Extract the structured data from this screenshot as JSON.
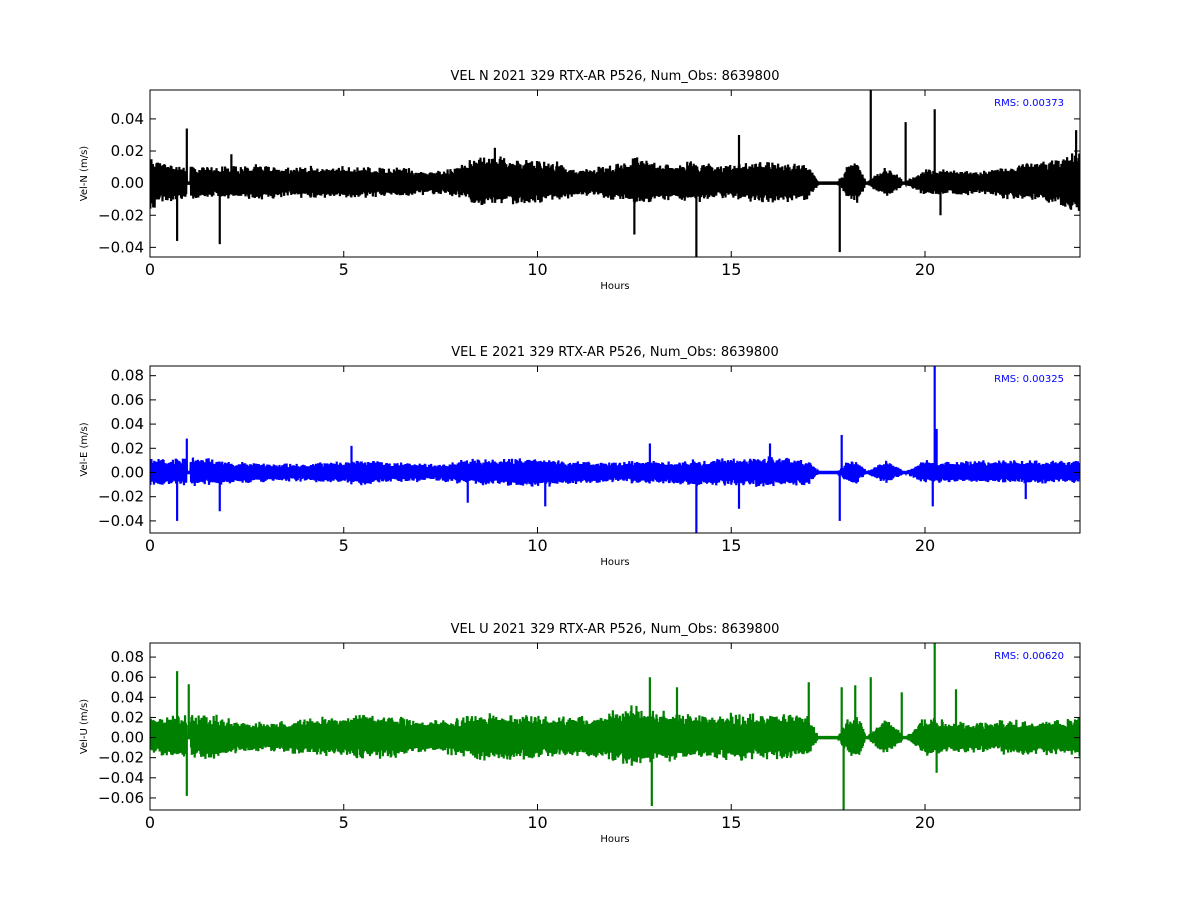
{
  "chart_data": [
    {
      "type": "line",
      "title": "VEL N 2021 329 RTX-AR  P526, Num_Obs: 8639800",
      "xlabel": "Hours",
      "ylabel": "Vel-N (m/s)",
      "xlim": [
        0,
        24
      ],
      "ylim": [
        -0.046,
        0.058
      ],
      "xticks": [
        0,
        5,
        10,
        15,
        20
      ],
      "yticks": [
        -0.04,
        -0.02,
        0.0,
        0.02,
        0.04
      ],
      "xtick_labels": [
        "0",
        "5",
        "10",
        "15",
        "20"
      ],
      "ytick_labels": [
        "−0.04",
        "−0.02",
        "0.00",
        "0.02",
        "0.04"
      ],
      "color": "#000000",
      "annotation": "RMS:  0.00373",
      "grid": false,
      "series": [
        {
          "x": [
            0.0,
            0.5,
            1.0,
            1.5,
            2.0,
            2.5,
            3.0,
            3.5,
            4.0,
            4.5,
            5.0,
            5.5,
            6.0,
            6.5,
            7.0,
            7.5,
            8.0,
            8.5,
            9.0,
            9.5,
            10.0,
            10.5,
            11.0,
            11.5,
            12.0,
            12.5,
            13.0,
            13.5,
            14.0,
            14.5,
            15.0,
            15.5,
            16.0,
            16.5,
            17.0,
            17.25,
            17.75,
            18.0,
            18.25,
            18.5,
            19.0,
            19.5,
            20.0,
            20.5,
            21.0,
            21.5,
            22.0,
            22.5,
            23.0,
            23.5,
            24.0
          ],
          "y_low": [
            -0.018,
            -0.012,
            -0.011,
            -0.01,
            -0.01,
            -0.01,
            -0.011,
            -0.01,
            -0.01,
            -0.01,
            -0.01,
            -0.01,
            -0.009,
            -0.009,
            -0.008,
            -0.007,
            -0.01,
            -0.015,
            -0.015,
            -0.014,
            -0.013,
            -0.012,
            -0.008,
            -0.009,
            -0.011,
            -0.014,
            -0.013,
            -0.011,
            -0.013,
            -0.011,
            -0.01,
            -0.012,
            -0.013,
            -0.012,
            -0.011,
            -0.001,
            -0.001,
            -0.01,
            -0.013,
            -0.001,
            -0.01,
            -0.001,
            -0.009,
            -0.008,
            -0.008,
            -0.007,
            -0.01,
            -0.011,
            -0.013,
            -0.016,
            -0.02
          ],
          "y_high": [
            0.018,
            0.013,
            0.012,
            0.011,
            0.012,
            0.012,
            0.012,
            0.011,
            0.011,
            0.011,
            0.011,
            0.011,
            0.01,
            0.011,
            0.009,
            0.008,
            0.012,
            0.018,
            0.018,
            0.016,
            0.015,
            0.014,
            0.009,
            0.011,
            0.012,
            0.017,
            0.015,
            0.012,
            0.015,
            0.013,
            0.012,
            0.014,
            0.015,
            0.014,
            0.013,
            0.001,
            0.001,
            0.012,
            0.014,
            0.001,
            0.011,
            0.001,
            0.01,
            0.009,
            0.009,
            0.008,
            0.011,
            0.013,
            0.015,
            0.018,
            0.022
          ],
          "gaps": [
            [
              0.95,
              1.05
            ],
            [
              17.25,
              17.75
            ],
            [
              18.45,
              18.55
            ],
            [
              19.4,
              19.5
            ]
          ],
          "spikes": [
            [
              0.7,
              -0.036
            ],
            [
              0.95,
              0.034
            ],
            [
              1.8,
              -0.038
            ],
            [
              2.1,
              0.018
            ],
            [
              8.9,
              0.022
            ],
            [
              12.5,
              -0.032
            ],
            [
              14.1,
              -0.046
            ],
            [
              15.2,
              0.03
            ],
            [
              17.8,
              -0.043
            ],
            [
              18.6,
              0.058
            ],
            [
              19.5,
              0.038
            ],
            [
              20.25,
              0.046
            ],
            [
              20.4,
              -0.02
            ],
            [
              23.9,
              0.033
            ]
          ]
        }
      ]
    },
    {
      "type": "line",
      "title": "VEL E 2021 329 RTX-AR  P526, Num_Obs: 8639800",
      "xlabel": "Hours",
      "ylabel": "Vel-E (m/s)",
      "xlim": [
        0,
        24
      ],
      "ylim": [
        -0.05,
        0.088
      ],
      "xticks": [
        0,
        5,
        10,
        15,
        20
      ],
      "yticks": [
        -0.04,
        -0.02,
        0.0,
        0.02,
        0.04,
        0.06,
        0.08
      ],
      "xtick_labels": [
        "0",
        "5",
        "10",
        "15",
        "20"
      ],
      "ytick_labels": [
        "−0.04",
        "−0.02",
        "0.00",
        "0.02",
        "0.04",
        "0.06",
        "0.08"
      ],
      "color": "#0000ff",
      "annotation": "RMS:  0.00325",
      "grid": false,
      "series": [
        {
          "x": [
            0.0,
            0.5,
            1.0,
            1.5,
            2.0,
            2.5,
            3.0,
            3.5,
            4.0,
            4.5,
            5.0,
            5.5,
            6.0,
            6.5,
            7.0,
            7.5,
            8.0,
            8.5,
            9.0,
            9.5,
            10.0,
            10.5,
            11.0,
            11.5,
            12.0,
            12.5,
            13.0,
            13.5,
            14.0,
            14.5,
            15.0,
            15.5,
            16.0,
            16.5,
            17.0,
            17.25,
            17.75,
            18.0,
            18.25,
            18.5,
            19.0,
            19.5,
            20.0,
            20.5,
            21.0,
            21.5,
            22.0,
            22.5,
            23.0,
            23.5,
            24.0
          ],
          "y_low": [
            -0.012,
            -0.011,
            -0.012,
            -0.012,
            -0.01,
            -0.009,
            -0.008,
            -0.008,
            -0.008,
            -0.009,
            -0.01,
            -0.011,
            -0.01,
            -0.009,
            -0.008,
            -0.008,
            -0.01,
            -0.011,
            -0.012,
            -0.013,
            -0.013,
            -0.011,
            -0.01,
            -0.009,
            -0.009,
            -0.01,
            -0.01,
            -0.01,
            -0.011,
            -0.012,
            -0.012,
            -0.012,
            -0.013,
            -0.012,
            -0.011,
            -0.001,
            -0.001,
            -0.009,
            -0.01,
            -0.001,
            -0.01,
            -0.001,
            -0.01,
            -0.009,
            -0.009,
            -0.009,
            -0.01,
            -0.01,
            -0.01,
            -0.009,
            -0.009
          ],
          "y_high": [
            0.012,
            0.012,
            0.014,
            0.013,
            0.01,
            0.009,
            0.008,
            0.008,
            0.008,
            0.009,
            0.011,
            0.012,
            0.01,
            0.009,
            0.008,
            0.008,
            0.011,
            0.012,
            0.012,
            0.013,
            0.013,
            0.011,
            0.01,
            0.009,
            0.009,
            0.01,
            0.01,
            0.01,
            0.011,
            0.012,
            0.013,
            0.013,
            0.014,
            0.012,
            0.011,
            0.001,
            0.001,
            0.01,
            0.011,
            0.001,
            0.011,
            0.001,
            0.011,
            0.01,
            0.01,
            0.011,
            0.012,
            0.011,
            0.011,
            0.01,
            0.01
          ],
          "gaps": [
            [
              0.95,
              1.05
            ],
            [
              17.25,
              17.75
            ],
            [
              18.45,
              18.55
            ],
            [
              19.4,
              19.5
            ]
          ],
          "spikes": [
            [
              0.7,
              -0.04
            ],
            [
              0.95,
              0.028
            ],
            [
              1.8,
              -0.032
            ],
            [
              5.2,
              0.022
            ],
            [
              8.2,
              -0.025
            ],
            [
              10.2,
              -0.028
            ],
            [
              12.9,
              0.024
            ],
            [
              14.1,
              -0.05
            ],
            [
              15.2,
              -0.03
            ],
            [
              16.0,
              0.024
            ],
            [
              17.8,
              -0.04
            ],
            [
              17.85,
              0.031
            ],
            [
              20.25,
              0.088
            ],
            [
              20.3,
              0.036
            ],
            [
              20.2,
              -0.028
            ],
            [
              22.6,
              -0.022
            ]
          ]
        }
      ]
    },
    {
      "type": "line",
      "title": "VEL U 2021 329 RTX-AR  P526, Num_Obs: 8639800",
      "xlabel": "Hours",
      "ylabel": "Vel-U (m/s)",
      "xlim": [
        0,
        24
      ],
      "ylim": [
        -0.072,
        0.094
      ],
      "xticks": [
        0,
        5,
        10,
        15,
        20
      ],
      "yticks": [
        -0.06,
        -0.04,
        -0.02,
        0.0,
        0.02,
        0.04,
        0.06,
        0.08
      ],
      "xtick_labels": [
        "0",
        "5",
        "10",
        "15",
        "20"
      ],
      "ytick_labels": [
        "−0.06",
        "−0.04",
        "−0.02",
        "0.00",
        "0.02",
        "0.04",
        "0.06",
        "0.08"
      ],
      "color": "#008000",
      "annotation": "RMS:  0.00620",
      "grid": false,
      "series": [
        {
          "x": [
            0.0,
            0.5,
            1.0,
            1.5,
            2.0,
            2.5,
            3.0,
            3.5,
            4.0,
            4.5,
            5.0,
            5.5,
            6.0,
            6.5,
            7.0,
            7.5,
            8.0,
            8.5,
            9.0,
            9.5,
            10.0,
            10.5,
            11.0,
            11.5,
            12.0,
            12.5,
            13.0,
            13.5,
            14.0,
            14.5,
            15.0,
            15.5,
            16.0,
            16.5,
            17.0,
            17.25,
            17.75,
            18.0,
            18.25,
            18.5,
            19.0,
            19.5,
            20.0,
            20.5,
            21.0,
            21.5,
            22.0,
            22.5,
            23.0,
            23.5,
            24.0
          ],
          "y_low": [
            -0.02,
            -0.02,
            -0.024,
            -0.024,
            -0.018,
            -0.015,
            -0.015,
            -0.016,
            -0.018,
            -0.02,
            -0.02,
            -0.024,
            -0.022,
            -0.02,
            -0.017,
            -0.017,
            -0.02,
            -0.023,
            -0.024,
            -0.023,
            -0.022,
            -0.02,
            -0.02,
            -0.022,
            -0.026,
            -0.03,
            -0.028,
            -0.024,
            -0.022,
            -0.022,
            -0.024,
            -0.023,
            -0.022,
            -0.022,
            -0.022,
            -0.001,
            -0.001,
            -0.02,
            -0.024,
            -0.001,
            -0.02,
            -0.001,
            -0.02,
            -0.017,
            -0.016,
            -0.016,
            -0.017,
            -0.018,
            -0.018,
            -0.017,
            -0.02
          ],
          "y_high": [
            0.022,
            0.022,
            0.026,
            0.025,
            0.02,
            0.017,
            0.016,
            0.018,
            0.02,
            0.022,
            0.022,
            0.026,
            0.024,
            0.022,
            0.018,
            0.018,
            0.022,
            0.025,
            0.026,
            0.025,
            0.024,
            0.022,
            0.022,
            0.024,
            0.028,
            0.034,
            0.03,
            0.026,
            0.024,
            0.024,
            0.026,
            0.025,
            0.024,
            0.024,
            0.024,
            0.001,
            0.001,
            0.022,
            0.026,
            0.001,
            0.022,
            0.001,
            0.022,
            0.018,
            0.017,
            0.017,
            0.018,
            0.019,
            0.019,
            0.018,
            0.022
          ],
          "gaps": [
            [
              0.95,
              1.05
            ],
            [
              17.25,
              17.75
            ],
            [
              18.45,
              18.55
            ],
            [
              19.4,
              19.5
            ]
          ],
          "spikes": [
            [
              0.7,
              0.066
            ],
            [
              0.95,
              -0.058
            ],
            [
              1.0,
              0.053
            ],
            [
              12.9,
              0.06
            ],
            [
              12.95,
              -0.068
            ],
            [
              13.6,
              0.05
            ],
            [
              17.0,
              0.055
            ],
            [
              17.85,
              0.05
            ],
            [
              17.9,
              -0.072
            ],
            [
              18.2,
              0.052
            ],
            [
              18.6,
              0.06
            ],
            [
              19.4,
              0.045
            ],
            [
              20.25,
              0.094
            ],
            [
              20.3,
              -0.035
            ],
            [
              20.8,
              0.048
            ]
          ]
        }
      ]
    }
  ]
}
